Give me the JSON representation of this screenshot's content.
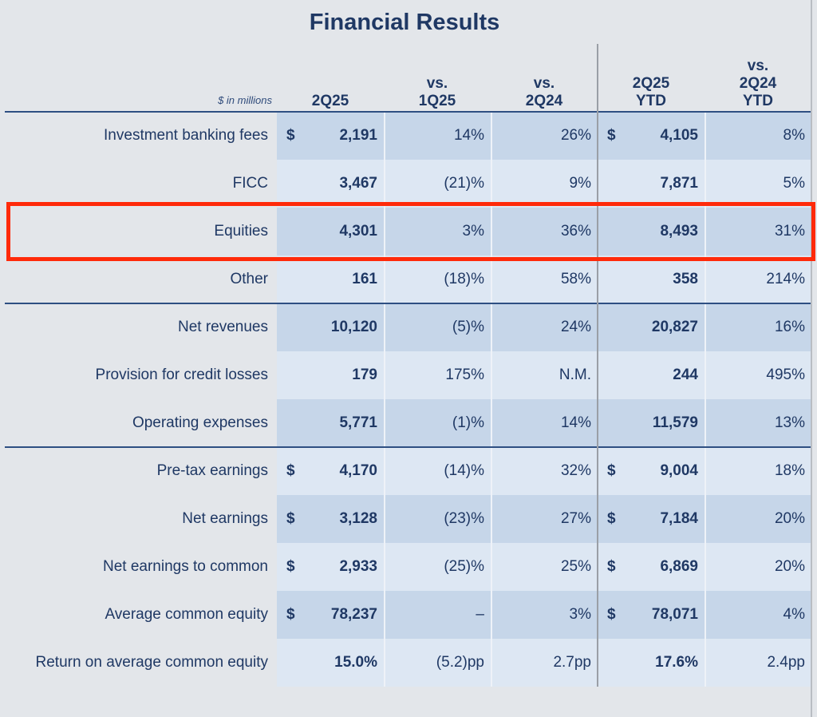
{
  "title": "Financial Results",
  "unit_note": "$ in millions",
  "columns": [
    "2Q25",
    "vs.\n1Q25",
    "vs.\n2Q24",
    "2Q25\nYTD",
    "vs.\n2Q24\nYTD"
  ],
  "colors": {
    "text": "#1f3864",
    "band_dark": "#c6d6e9",
    "band_light": "#dde7f3",
    "highlight": "#ff2a0a",
    "background": "#e3e6ea"
  },
  "highlighted_row": "Equities",
  "rows": [
    {
      "label": "Investment banking fees",
      "dollar": true,
      "q": "2,191",
      "vq": "14%",
      "vy": "26%",
      "ytd": "4,105",
      "vytd": "8%"
    },
    {
      "label": "FICC",
      "dollar": false,
      "q": "3,467",
      "vq": "(21)%",
      "vy": "9%",
      "ytd": "7,871",
      "vytd": "5%"
    },
    {
      "label": "Equities",
      "dollar": false,
      "q": "4,301",
      "vq": "3%",
      "vy": "36%",
      "ytd": "8,493",
      "vytd": "31%"
    },
    {
      "label": "Other",
      "dollar": false,
      "q": "161",
      "vq": "(18)%",
      "vy": "58%",
      "ytd": "358",
      "vytd": "214%"
    },
    {
      "label": "Net revenues",
      "dollar": false,
      "q": "10,120",
      "vq": "(5)%",
      "vy": "24%",
      "ytd": "20,827",
      "vytd": "16%"
    },
    {
      "label": "Provision for credit losses",
      "dollar": false,
      "q": "179",
      "vq": "175%",
      "vy": "N.M.",
      "ytd": "244",
      "vytd": "495%"
    },
    {
      "label": "Operating expenses",
      "dollar": false,
      "q": "5,771",
      "vq": "(1)%",
      "vy": "14%",
      "ytd": "11,579",
      "vytd": "13%"
    },
    {
      "label": "Pre-tax earnings",
      "dollar": true,
      "q": "4,170",
      "vq": "(14)%",
      "vy": "32%",
      "ytd": "9,004",
      "vytd": "18%"
    },
    {
      "label": "Net earnings",
      "dollar": true,
      "q": "3,128",
      "vq": "(23)%",
      "vy": "27%",
      "ytd": "7,184",
      "vytd": "20%"
    },
    {
      "label": "Net earnings to common",
      "dollar": true,
      "q": "2,933",
      "vq": "(25)%",
      "vy": "25%",
      "ytd": "6,869",
      "vytd": "20%"
    },
    {
      "label": "Average common equity",
      "dollar": true,
      "q": "78,237",
      "vq": "–",
      "vy": "3%",
      "ytd": "78,071",
      "vytd": "4%"
    },
    {
      "label": "Return on average common equity",
      "dollar": false,
      "q": "15.0%",
      "vq": "(5.2)pp",
      "vy": "2.7pp",
      "ytd": "17.6%",
      "vytd": "2.4pp"
    }
  ],
  "dollar_sign": "$"
}
